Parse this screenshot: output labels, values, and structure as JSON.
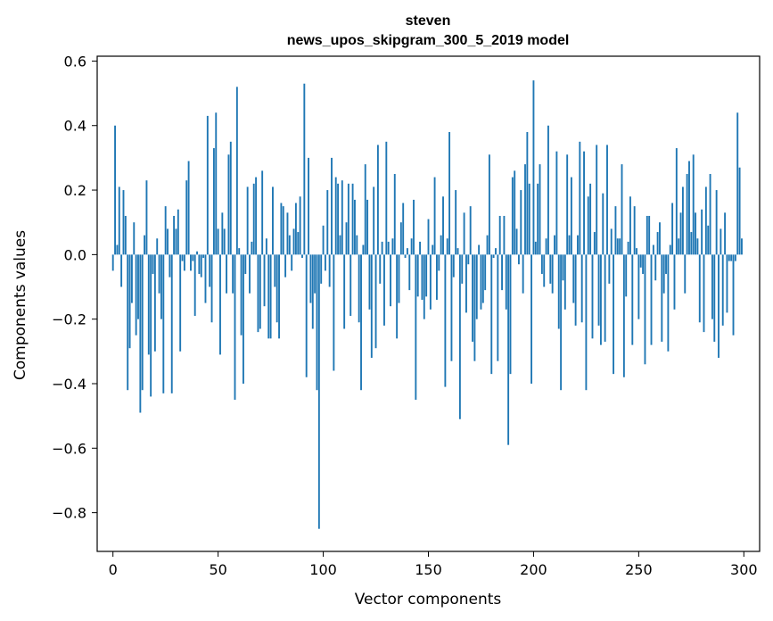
{
  "chart_data": {
    "type": "bar",
    "title": "steven",
    "subtitle": "news_upos_skipgram_300_5_2019 model",
    "xlabel": "Vector components",
    "ylabel": "Components values",
    "xlim": [
      -7.5,
      307.5
    ],
    "ylim": [
      -0.92,
      0.615
    ],
    "xticks": [
      0,
      50,
      100,
      150,
      200,
      250,
      300
    ],
    "yticks": [
      -0.8,
      -0.6,
      -0.4,
      -0.2,
      0.0,
      0.2,
      0.4,
      0.6
    ],
    "ytick_labels": [
      "−0.8",
      "−0.6",
      "−0.4",
      "−0.2",
      "0.0",
      "0.2",
      "0.4",
      "0.6"
    ],
    "grid": false,
    "bar_color": "#1f77b4",
    "values": [
      -0.05,
      0.4,
      0.03,
      0.21,
      -0.1,
      0.2,
      0.12,
      -0.42,
      -0.29,
      -0.15,
      0.1,
      -0.25,
      -0.2,
      -0.49,
      -0.42,
      0.06,
      0.23,
      -0.31,
      -0.44,
      -0.06,
      -0.3,
      0.05,
      -0.12,
      -0.2,
      -0.43,
      0.15,
      0.08,
      -0.07,
      -0.43,
      0.12,
      0.08,
      0.14,
      -0.3,
      -0.02,
      -0.05,
      0.23,
      0.29,
      -0.05,
      -0.02,
      -0.19,
      0.01,
      -0.06,
      -0.07,
      -0.01,
      -0.15,
      0.43,
      -0.1,
      -0.21,
      0.33,
      0.44,
      0.08,
      -0.31,
      0.13,
      0.08,
      -0.12,
      0.31,
      0.35,
      -0.12,
      -0.45,
      0.52,
      0.02,
      -0.25,
      -0.4,
      -0.06,
      0.21,
      -0.12,
      0.04,
      0.22,
      0.24,
      -0.24,
      -0.23,
      0.26,
      -0.16,
      0.05,
      -0.26,
      -0.26,
      0.21,
      -0.1,
      -0.21,
      -0.26,
      0.16,
      0.15,
      -0.07,
      0.13,
      0.06,
      -0.05,
      0.08,
      0.16,
      0.07,
      0.18,
      -0.01,
      0.53,
      -0.38,
      0.3,
      -0.15,
      -0.23,
      -0.12,
      -0.42,
      -0.85,
      -0.09,
      0.09,
      -0.05,
      0.2,
      -0.1,
      0.3,
      -0.36,
      0.24,
      0.22,
      0.06,
      0.23,
      -0.23,
      0.1,
      0.22,
      -0.19,
      0.22,
      0.17,
      0.06,
      -0.21,
      -0.42,
      0.03,
      0.28,
      0.17,
      -0.17,
      -0.32,
      0.21,
      -0.29,
      0.34,
      -0.09,
      0.04,
      -0.22,
      0.35,
      0.04,
      -0.16,
      0.05,
      0.25,
      -0.26,
      -0.15,
      0.1,
      0.16,
      -0.01,
      0.02,
      -0.11,
      0.05,
      0.17,
      -0.45,
      -0.13,
      0.04,
      -0.14,
      -0.2,
      -0.13,
      0.11,
      -0.17,
      0.03,
      0.24,
      -0.14,
      -0.05,
      0.06,
      0.18,
      -0.41,
      0.05,
      0.38,
      -0.33,
      -0.07,
      0.2,
      0.02,
      -0.51,
      -0.09,
      0.13,
      -0.18,
      -0.03,
      0.15,
      -0.27,
      -0.33,
      -0.2,
      0.03,
      -0.17,
      -0.15,
      -0.11,
      0.06,
      0.31,
      -0.37,
      -0.01,
      0.02,
      -0.33,
      0.12,
      -0.11,
      0.12,
      -0.17,
      -0.59,
      -0.37,
      0.24,
      0.26,
      0.08,
      -0.03,
      0.2,
      -0.12,
      0.28,
      0.38,
      0.22,
      -0.4,
      0.54,
      0.04,
      0.22,
      0.28,
      -0.06,
      -0.1,
      0.05,
      0.4,
      -0.09,
      -0.12,
      0.06,
      0.32,
      -0.23,
      -0.42,
      -0.08,
      -0.17,
      0.31,
      0.06,
      0.24,
      -0.15,
      -0.22,
      0.06,
      0.35,
      -0.21,
      0.32,
      -0.42,
      0.18,
      0.22,
      -0.26,
      0.07,
      0.34,
      -0.22,
      -0.28,
      0.19,
      -0.27,
      0.34,
      -0.09,
      0.08,
      -0.37,
      0.15,
      0.05,
      0.05,
      0.28,
      -0.38,
      -0.13,
      0.04,
      0.18,
      -0.28,
      0.15,
      0.02,
      -0.2,
      -0.04,
      -0.06,
      -0.34,
      0.12,
      0.12,
      -0.28,
      0.03,
      -0.08,
      0.07,
      0.1,
      -0.27,
      -0.12,
      -0.06,
      -0.3,
      0.03,
      0.16,
      -0.17,
      0.33,
      0.05,
      0.13,
      0.21,
      -0.12,
      0.25,
      0.29,
      0.07,
      0.31,
      0.13,
      0.05,
      -0.21,
      0.14,
      -0.24,
      0.21,
      0.09,
      0.25,
      -0.2,
      -0.27,
      0.2,
      -0.32,
      0.08,
      -0.22,
      0.13,
      -0.18,
      -0.02,
      -0.02,
      -0.25,
      -0.02,
      0.44,
      0.27,
      0.05
    ]
  }
}
